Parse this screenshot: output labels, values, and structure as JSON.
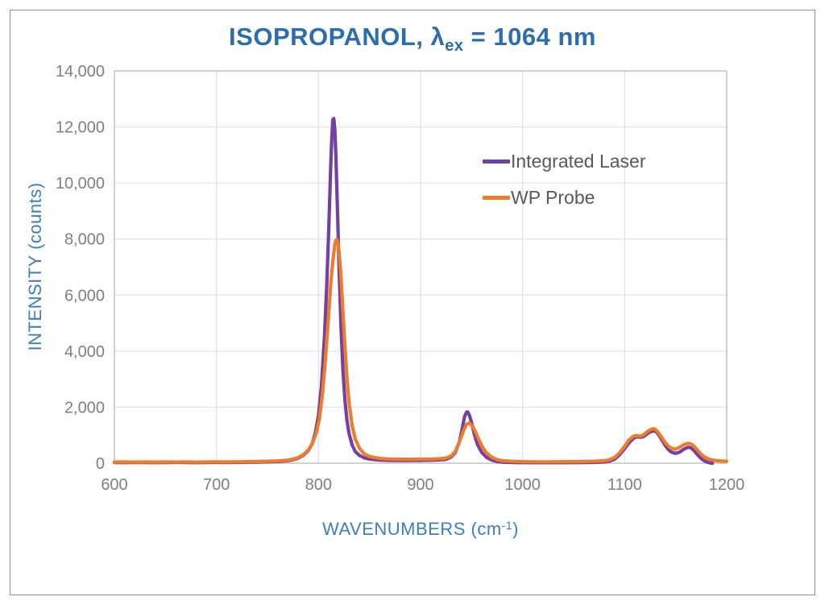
{
  "chart_data": {
    "type": "line",
    "title": "ISOPROPANOL, λex = 1064 nm",
    "title_parts": {
      "main": "ISOPROPANOL, λ",
      "sub": "ex",
      "rest": " = 1064 nm"
    },
    "xlabel": "WAVENUMBERS (cm-1)",
    "xlabel_parts": {
      "main": "WAVENUMBERS (cm",
      "sup": "-1",
      "rest": ")"
    },
    "ylabel": "INTENSITY (counts)",
    "grid": true,
    "legend_position": "inside-upper-right",
    "x_axis": {
      "min": 600,
      "max": 1200,
      "tick_values": [
        600,
        700,
        800,
        900,
        1000,
        1100,
        1200
      ],
      "tick_labels": [
        "600",
        "700",
        "800",
        "900",
        "1000",
        "1100",
        "1200"
      ]
    },
    "y_axis": {
      "min": 0,
      "max": 14000,
      "tick_values": [
        0,
        2000,
        4000,
        6000,
        8000,
        10000,
        12000,
        14000
      ],
      "tick_labels": [
        "0",
        "2,000",
        "4,000",
        "6,000",
        "8,000",
        "10,000",
        "12,000",
        "14,000"
      ]
    },
    "colors": {
      "title_blue": "#2c6dae",
      "axis_title_blue": "#3f7ebe",
      "tick_text": "#7f7f7f",
      "legend_text": "#58595b",
      "gridline": "#d9e5f2",
      "plot_border": "#bfbfbf",
      "series_purple": "#7340a3",
      "series_orange": "#ee7c2d"
    },
    "series": [
      {
        "name": "Integrated Laser",
        "color": "#7340a3",
        "points": [
          [
            600,
            25
          ],
          [
            610,
            20
          ],
          [
            620,
            30
          ],
          [
            630,
            25
          ],
          [
            640,
            20
          ],
          [
            650,
            25
          ],
          [
            660,
            30
          ],
          [
            670,
            25
          ],
          [
            680,
            20
          ],
          [
            690,
            25
          ],
          [
            700,
            30
          ],
          [
            710,
            25
          ],
          [
            720,
            30
          ],
          [
            730,
            35
          ],
          [
            740,
            40
          ],
          [
            750,
            50
          ],
          [
            760,
            60
          ],
          [
            770,
            90
          ],
          [
            775,
            120
          ],
          [
            780,
            180
          ],
          [
            785,
            280
          ],
          [
            790,
            450
          ],
          [
            794,
            700
          ],
          [
            797,
            1100
          ],
          [
            800,
            1700
          ],
          [
            803,
            2800
          ],
          [
            806,
            4600
          ],
          [
            808,
            6300
          ],
          [
            810,
            8300
          ],
          [
            812,
            10600
          ],
          [
            813,
            11600
          ],
          [
            814,
            12250
          ],
          [
            815,
            12300
          ],
          [
            816,
            11900
          ],
          [
            817,
            11000
          ],
          [
            818,
            9800
          ],
          [
            819,
            8500
          ],
          [
            820,
            7100
          ],
          [
            822,
            4900
          ],
          [
            824,
            3300
          ],
          [
            826,
            2200
          ],
          [
            828,
            1500
          ],
          [
            830,
            1050
          ],
          [
            833,
            650
          ],
          [
            836,
            420
          ],
          [
            840,
            280
          ],
          [
            845,
            190
          ],
          [
            850,
            150
          ],
          [
            860,
            110
          ],
          [
            870,
            100
          ],
          [
            880,
            95
          ],
          [
            890,
            95
          ],
          [
            900,
            100
          ],
          [
            910,
            105
          ],
          [
            920,
            120
          ],
          [
            925,
            140
          ],
          [
            930,
            220
          ],
          [
            934,
            380
          ],
          [
            938,
            750
          ],
          [
            941,
            1250
          ],
          [
            943,
            1650
          ],
          [
            945,
            1820
          ],
          [
            946,
            1830
          ],
          [
            948,
            1700
          ],
          [
            950,
            1450
          ],
          [
            953,
            1000
          ],
          [
            956,
            650
          ],
          [
            960,
            380
          ],
          [
            965,
            200
          ],
          [
            970,
            110
          ],
          [
            975,
            60
          ],
          [
            980,
            40
          ],
          [
            990,
            25
          ],
          [
            1000,
            20
          ],
          [
            1010,
            20
          ],
          [
            1020,
            20
          ],
          [
            1030,
            20
          ],
          [
            1040,
            20
          ],
          [
            1050,
            20
          ],
          [
            1060,
            25
          ],
          [
            1070,
            30
          ],
          [
            1080,
            45
          ],
          [
            1085,
            70
          ],
          [
            1090,
            140
          ],
          [
            1095,
            300
          ],
          [
            1100,
            520
          ],
          [
            1105,
            760
          ],
          [
            1109,
            900
          ],
          [
            1112,
            940
          ],
          [
            1115,
            930
          ],
          [
            1118,
            940
          ],
          [
            1121,
            1020
          ],
          [
            1124,
            1100
          ],
          [
            1127,
            1140
          ],
          [
            1129,
            1150
          ],
          [
            1131,
            1120
          ],
          [
            1134,
            980
          ],
          [
            1137,
            800
          ],
          [
            1140,
            620
          ],
          [
            1143,
            480
          ],
          [
            1146,
            390
          ],
          [
            1150,
            350
          ],
          [
            1154,
            400
          ],
          [
            1158,
            500
          ],
          [
            1161,
            555
          ],
          [
            1163,
            570
          ],
          [
            1165,
            545
          ],
          [
            1168,
            450
          ],
          [
            1171,
            320
          ],
          [
            1174,
            200
          ],
          [
            1177,
            110
          ],
          [
            1180,
            50
          ],
          [
            1183,
            15
          ],
          [
            1186,
            0
          ]
        ]
      },
      {
        "name": "WP Probe",
        "color": "#ee7c2d",
        "points": [
          [
            600,
            40
          ],
          [
            610,
            45
          ],
          [
            620,
            40
          ],
          [
            630,
            45
          ],
          [
            640,
            40
          ],
          [
            650,
            45
          ],
          [
            660,
            40
          ],
          [
            670,
            45
          ],
          [
            680,
            40
          ],
          [
            690,
            45
          ],
          [
            700,
            50
          ],
          [
            710,
            45
          ],
          [
            720,
            50
          ],
          [
            730,
            55
          ],
          [
            740,
            60
          ],
          [
            750,
            70
          ],
          [
            760,
            80
          ],
          [
            770,
            110
          ],
          [
            775,
            140
          ],
          [
            780,
            200
          ],
          [
            785,
            300
          ],
          [
            790,
            470
          ],
          [
            794,
            700
          ],
          [
            798,
            1100
          ],
          [
            801,
            1600
          ],
          [
            804,
            2500
          ],
          [
            807,
            3800
          ],
          [
            810,
            5300
          ],
          [
            812,
            6400
          ],
          [
            814,
            7200
          ],
          [
            816,
            7800
          ],
          [
            817,
            7950
          ],
          [
            818,
            7980
          ],
          [
            819,
            7900
          ],
          [
            820,
            7600
          ],
          [
            822,
            6700
          ],
          [
            824,
            5400
          ],
          [
            826,
            4100
          ],
          [
            828,
            3000
          ],
          [
            830,
            2150
          ],
          [
            833,
            1350
          ],
          [
            836,
            870
          ],
          [
            840,
            540
          ],
          [
            845,
            330
          ],
          [
            850,
            240
          ],
          [
            860,
            170
          ],
          [
            870,
            150
          ],
          [
            880,
            140
          ],
          [
            890,
            140
          ],
          [
            900,
            145
          ],
          [
            910,
            150
          ],
          [
            920,
            165
          ],
          [
            925,
            185
          ],
          [
            930,
            260
          ],
          [
            934,
            420
          ],
          [
            938,
            750
          ],
          [
            942,
            1150
          ],
          [
            945,
            1380
          ],
          [
            947,
            1430
          ],
          [
            949,
            1400
          ],
          [
            951,
            1320
          ],
          [
            954,
            1100
          ],
          [
            957,
            850
          ],
          [
            961,
            560
          ],
          [
            965,
            350
          ],
          [
            970,
            210
          ],
          [
            975,
            130
          ],
          [
            980,
            90
          ],
          [
            990,
            65
          ],
          [
            1000,
            55
          ],
          [
            1010,
            50
          ],
          [
            1020,
            50
          ],
          [
            1030,
            50
          ],
          [
            1040,
            55
          ],
          [
            1050,
            55
          ],
          [
            1060,
            60
          ],
          [
            1070,
            70
          ],
          [
            1080,
            90
          ],
          [
            1085,
            120
          ],
          [
            1090,
            200
          ],
          [
            1095,
            370
          ],
          [
            1100,
            600
          ],
          [
            1104,
            820
          ],
          [
            1108,
            950
          ],
          [
            1111,
            990
          ],
          [
            1114,
            970
          ],
          [
            1117,
            980
          ],
          [
            1120,
            1060
          ],
          [
            1123,
            1150
          ],
          [
            1126,
            1210
          ],
          [
            1128,
            1230
          ],
          [
            1130,
            1210
          ],
          [
            1133,
            1090
          ],
          [
            1136,
            940
          ],
          [
            1139,
            780
          ],
          [
            1142,
            640
          ],
          [
            1145,
            550
          ],
          [
            1149,
            500
          ],
          [
            1153,
            550
          ],
          [
            1157,
            640
          ],
          [
            1160,
            690
          ],
          [
            1163,
            710
          ],
          [
            1166,
            670
          ],
          [
            1169,
            570
          ],
          [
            1172,
            440
          ],
          [
            1175,
            320
          ],
          [
            1178,
            230
          ],
          [
            1181,
            170
          ],
          [
            1185,
            120
          ],
          [
            1190,
            90
          ],
          [
            1195,
            75
          ],
          [
            1200,
            70
          ]
        ]
      }
    ]
  }
}
